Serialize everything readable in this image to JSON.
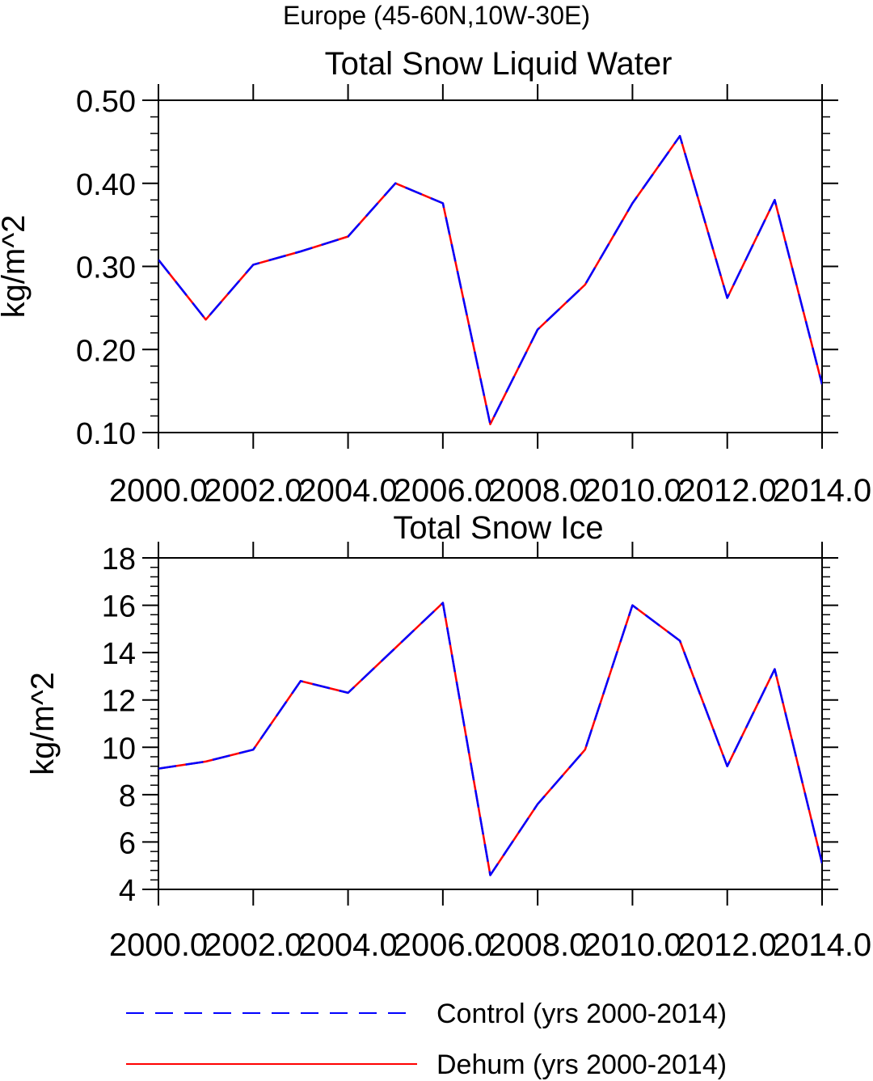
{
  "suptitle": "Europe (45-60N,10W-30E)",
  "chart_data": [
    {
      "type": "line",
      "title": "Total Snow Liquid Water",
      "xlabel": "",
      "ylabel": "kg/m^2",
      "xlim": [
        2000,
        2014
      ],
      "ylim": [
        0.1,
        0.5
      ],
      "x": [
        2000,
        2001,
        2002,
        2003,
        2004,
        2005,
        2006,
        2007,
        2008,
        2009,
        2010,
        2011,
        2012,
        2013,
        2014
      ],
      "x_ticks": [
        2000,
        2002,
        2004,
        2006,
        2008,
        2010,
        2012,
        2014
      ],
      "x_tick_labels": [
        "2000.0",
        "2002.0",
        "2004.0",
        "2006.0",
        "2008.0",
        "2010.0",
        "2012.0",
        "2014.0"
      ],
      "y_ticks": [
        0.1,
        0.2,
        0.3,
        0.4,
        0.5
      ],
      "y_tick_labels": [
        "0.10",
        "0.20",
        "0.30",
        "0.40",
        "0.50"
      ],
      "series": [
        {
          "name": "Control (yrs 2000-2014)",
          "color": "#0000ff",
          "dash": "dashed",
          "values": [
            0.308,
            0.236,
            0.302,
            0.318,
            0.336,
            0.4,
            0.376,
            0.11,
            0.224,
            0.278,
            0.376,
            0.457,
            0.262,
            0.38,
            0.158
          ]
        },
        {
          "name": "Dehum (yrs 2000-2014)",
          "color": "#ff0000",
          "dash": "solid",
          "values": [
            0.308,
            0.236,
            0.302,
            0.318,
            0.336,
            0.4,
            0.376,
            0.11,
            0.224,
            0.278,
            0.376,
            0.457,
            0.262,
            0.38,
            0.158
          ]
        }
      ]
    },
    {
      "type": "line",
      "title": "Total Snow Ice",
      "xlabel": "",
      "ylabel": "kg/m^2",
      "xlim": [
        2000,
        2014
      ],
      "ylim": [
        4,
        18
      ],
      "x": [
        2000,
        2001,
        2002,
        2003,
        2004,
        2005,
        2006,
        2007,
        2008,
        2009,
        2010,
        2011,
        2012,
        2013,
        2014
      ],
      "x_ticks": [
        2000,
        2002,
        2004,
        2006,
        2008,
        2010,
        2012,
        2014
      ],
      "x_tick_labels": [
        "2000.0",
        "2002.0",
        "2004.0",
        "2006.0",
        "2008.0",
        "2010.0",
        "2012.0",
        "2014.0"
      ],
      "y_ticks": [
        4,
        6,
        8,
        10,
        12,
        14,
        16,
        18
      ],
      "y_tick_labels": [
        "4",
        "6",
        "8",
        "10",
        "12",
        "14",
        "16",
        "18"
      ],
      "series": [
        {
          "name": "Control (yrs 2000-2014)",
          "color": "#0000ff",
          "dash": "dashed",
          "values": [
            9.1,
            9.4,
            9.9,
            12.8,
            12.3,
            14.2,
            16.1,
            4.6,
            7.6,
            9.9,
            16.0,
            14.5,
            9.2,
            13.3,
            5.1
          ]
        },
        {
          "name": "Dehum (yrs 2000-2014)",
          "color": "#ff0000",
          "dash": "solid",
          "values": [
            9.1,
            9.4,
            9.9,
            12.8,
            12.3,
            14.2,
            16.1,
            4.6,
            7.6,
            9.9,
            16.0,
            14.5,
            9.2,
            13.3,
            5.1
          ]
        }
      ]
    }
  ],
  "legend": {
    "placement": "bottom",
    "items": [
      {
        "label": "Control (yrs 2000-2014)",
        "color": "#0000ff",
        "dash": "dashed"
      },
      {
        "label": "Dehum (yrs 2000-2014)",
        "color": "#ff0000",
        "dash": "solid"
      }
    ]
  }
}
